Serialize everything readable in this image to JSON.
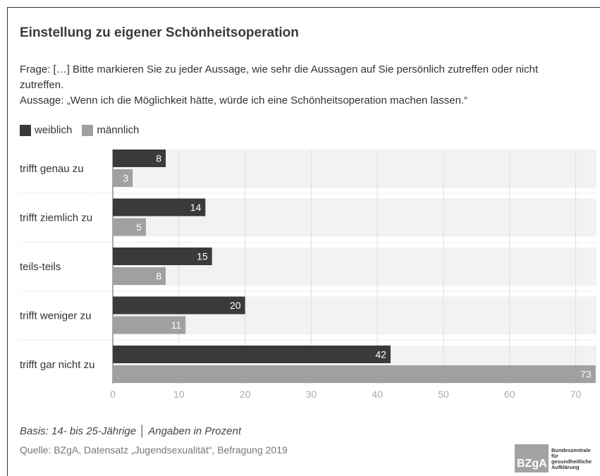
{
  "title": "Einstellung zu eigener Schönheitsoperation",
  "question_line1": "Frage: […] Bitte markieren Sie zu jeder Aussage, wie sehr die Aussagen auf Sie persönlich zutreffen oder nicht",
  "question_line2": "zutreffen.",
  "statement": "Aussage: „Wenn ich die Möglichkeit hätte, würde ich eine Schönheitsoperation machen lassen.“",
  "basis": "Basis: 14- bis 25-Jährige │ Angaben in Prozent",
  "source": "Quelle: BZgA, Datensatz „Jugendsexualität“, Befragung 2019",
  "logo": {
    "short": "BZgA",
    "line1": "Bundeszentrale",
    "line2": "für",
    "line3": "gesundheitliche",
    "line4": "Aufklärung"
  },
  "colors": {
    "weiblich": "#3a3a3a",
    "maennlich": "#a0a0a0",
    "band": "#f2f2f2",
    "grid": "#dddddd"
  },
  "chart_data": {
    "type": "bar",
    "orientation": "horizontal",
    "categories": [
      "trifft genau zu",
      "trifft ziemlich zu",
      "teils-teils",
      "trifft weniger zu",
      "trifft gar nicht zu"
    ],
    "series": [
      {
        "name": "weiblich",
        "values": [
          8,
          14,
          15,
          20,
          42
        ]
      },
      {
        "name": "männlich",
        "values": [
          3,
          5,
          8,
          11,
          73
        ]
      }
    ],
    "xticks": [
      0,
      10,
      20,
      30,
      40,
      50,
      60,
      70
    ],
    "xlim": [
      0,
      73
    ],
    "legend_position": "top-left",
    "grid": true
  }
}
